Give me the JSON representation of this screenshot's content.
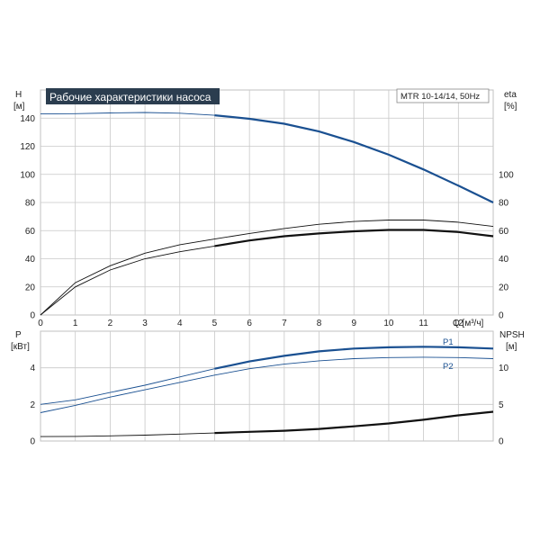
{
  "title": "Рабочие характеристики насоса",
  "model": "MTR 10-14/14, 50Hz",
  "colors": {
    "blue": "#1a5091",
    "black": "#111111",
    "grid": "#c8c8c8",
    "title_bg": "#2b3d4f"
  },
  "chart_data": [
    {
      "type": "line",
      "name": "top",
      "xlabel": "Q [м³/ч]",
      "xlim": [
        0,
        13
      ],
      "x_ticks": [
        0,
        1,
        2,
        3,
        4,
        5,
        6,
        7,
        8,
        9,
        10,
        11,
        12
      ],
      "y_left": {
        "label_line1": "H",
        "label_line2": "[м]",
        "lim": [
          0,
          160
        ],
        "ticks": [
          0,
          20,
          40,
          60,
          80,
          100,
          120,
          140
        ]
      },
      "y_right": {
        "label_line1": "eta",
        "label_line2": "[%]",
        "lim": [
          0,
          160
        ],
        "ticks": [
          0,
          20,
          40,
          60,
          80,
          100
        ]
      },
      "grid": true,
      "series": [
        {
          "role": "H",
          "axis": "left",
          "color": "blue",
          "x": [
            0,
            1,
            2,
            3,
            4,
            5,
            6,
            7,
            8,
            9,
            10,
            11,
            12,
            13
          ],
          "y": [
            143,
            143.2,
            143.7,
            144,
            143.5,
            142,
            139.5,
            136,
            130.5,
            123,
            114,
            103.5,
            92,
            80
          ]
        },
        {
          "role": "eta",
          "axis": "right",
          "color": "black",
          "x": [
            0,
            1,
            2,
            3,
            4,
            5,
            6,
            7,
            8,
            9,
            10,
            11,
            12,
            13
          ],
          "y": [
            0,
            20,
            32,
            40,
            45,
            49,
            53,
            56,
            58,
            59.5,
            60.5,
            60.5,
            59,
            56
          ]
        },
        {
          "role": "eta-upper",
          "axis": "right",
          "color": "black",
          "thin": true,
          "x": [
            0,
            1,
            2,
            3,
            4,
            5,
            6,
            7,
            8,
            9,
            10,
            11,
            12,
            13
          ],
          "y": [
            0,
            23,
            35,
            44,
            50,
            54,
            58,
            61.5,
            64.5,
            66.5,
            67.5,
            67.5,
            66,
            63
          ]
        }
      ]
    },
    {
      "type": "line",
      "name": "bottom",
      "xlim": [
        0,
        13
      ],
      "y_left": {
        "label_line1": "P",
        "label_line2": "[кВт]",
        "lim": [
          0,
          6
        ],
        "ticks": [
          0,
          2,
          4
        ]
      },
      "y_right": {
        "label_line1": "NPSH",
        "label_line2": "[м]",
        "lim": [
          0,
          15
        ],
        "ticks": [
          0,
          5,
          10
        ]
      },
      "grid": true,
      "series": [
        {
          "name": "P1",
          "axis": "left",
          "color": "blue",
          "x": [
            0,
            1,
            2,
            3,
            4,
            5,
            6,
            7,
            8,
            9,
            10,
            11,
            12,
            13
          ],
          "y": [
            2.0,
            2.25,
            2.65,
            3.05,
            3.5,
            3.95,
            4.35,
            4.65,
            4.9,
            5.05,
            5.12,
            5.15,
            5.12,
            5.05
          ]
        },
        {
          "name": "P2",
          "axis": "left",
          "color": "blue",
          "thin": true,
          "x": [
            0,
            1,
            2,
            3,
            4,
            5,
            6,
            7,
            8,
            9,
            10,
            11,
            12,
            13
          ],
          "y": [
            1.55,
            1.95,
            2.4,
            2.8,
            3.2,
            3.6,
            3.95,
            4.2,
            4.38,
            4.5,
            4.56,
            4.58,
            4.56,
            4.5
          ]
        },
        {
          "role": "NPSH",
          "axis": "right",
          "color": "black",
          "x": [
            0,
            1,
            2,
            3,
            4,
            5,
            6,
            7,
            8,
            9,
            10,
            11,
            12,
            13
          ],
          "y": [
            0.6,
            0.63,
            0.7,
            0.8,
            0.95,
            1.1,
            1.25,
            1.4,
            1.65,
            2.0,
            2.4,
            2.9,
            3.5,
            4.0
          ]
        }
      ]
    }
  ]
}
